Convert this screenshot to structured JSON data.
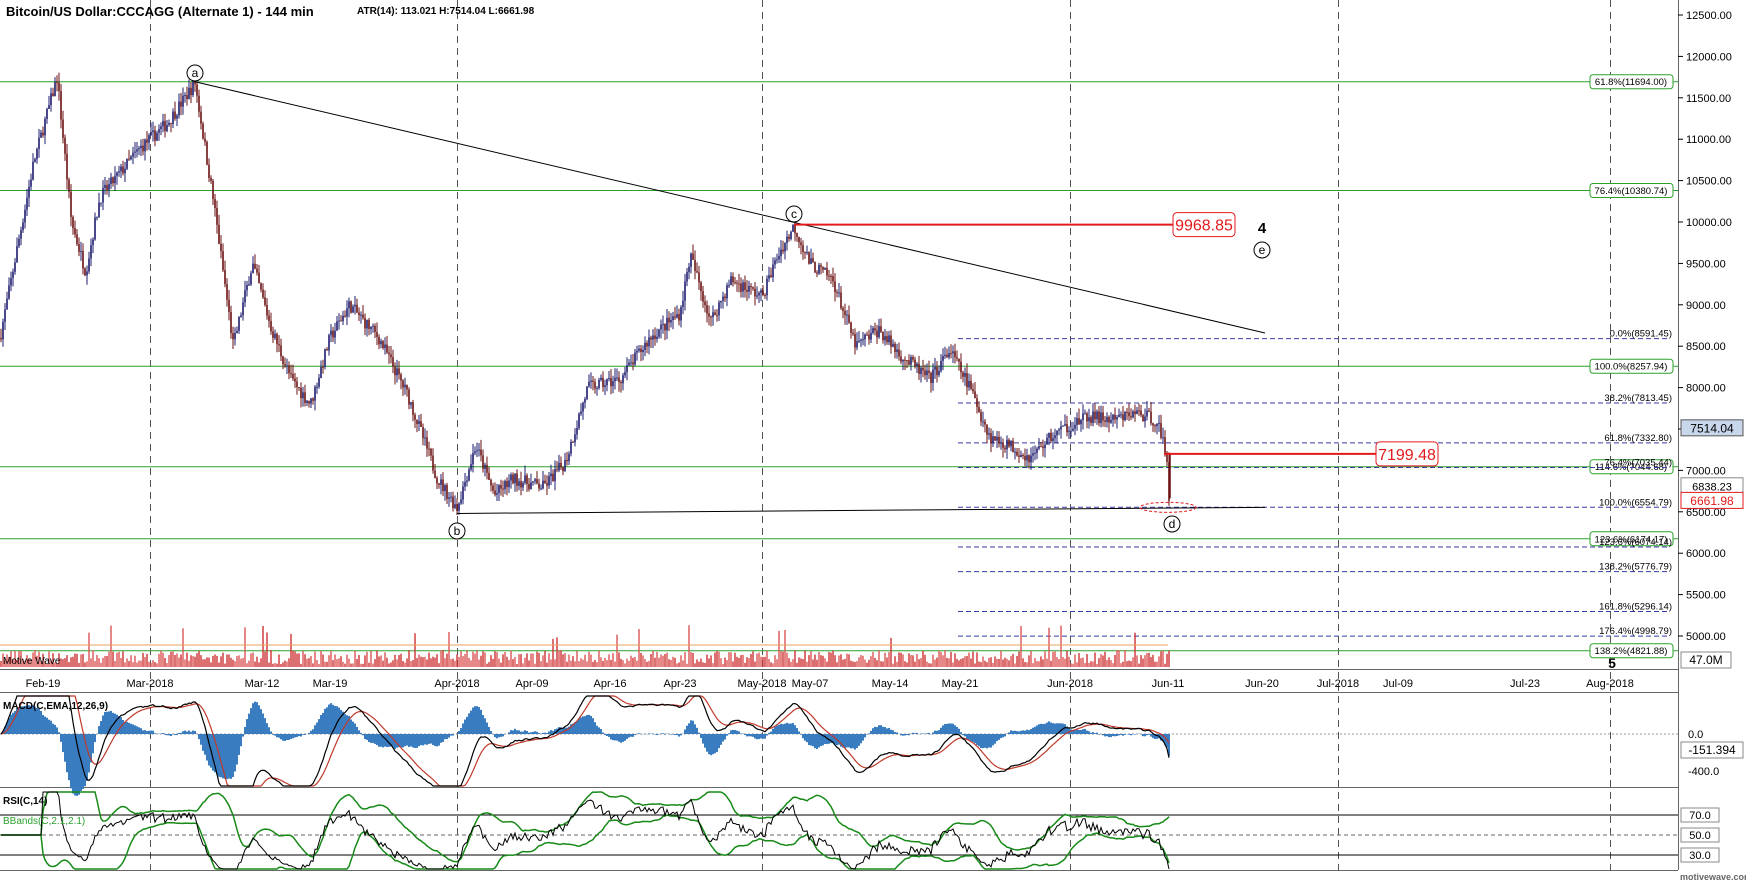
{
  "header": {
    "title": "Bitcoin/US Dollar:CCCAGG (Alternate 1) - 144 min",
    "stats": "ATR(14): 113.021  H:7514.04  L:6661.98"
  },
  "watermark": "Motive Wave",
  "credit": "motivewave.com",
  "colors": {
    "background": "#ffffff",
    "candle_up": "#1c1c6e",
    "fib_green": "#2ca02c",
    "target_red": "#e31a1c",
    "macd_hist": "#3a7cc0",
    "signal_red": "#c0392b",
    "rsi_band": "#178a17",
    "last_price_box": "#c8d7eb"
  },
  "chart_data": [
    {
      "type": "candlestick",
      "panel": "price",
      "title": "Bitcoin/US Dollar:CCCAGG (Alternate 1) - 144 min",
      "x_labels": [
        "Feb-19",
        "Mar-2018",
        "Mar-12",
        "Mar-19",
        "Apr-2018",
        "Apr-09",
        "Apr-16",
        "Apr-23",
        "May-2018",
        "May-07",
        "May-14",
        "May-21",
        "Jun-2018",
        "Jun-11",
        "Jun-20",
        "Jul-2018",
        "Jul-09",
        "Jul-23",
        "Aug-2018"
      ],
      "y_ticks": [
        5000,
        5500,
        6000,
        6500,
        7000,
        7500,
        8000,
        8500,
        9000,
        9500,
        10000,
        10500,
        11000,
        11500,
        12000,
        12500
      ],
      "ylim": [
        4700,
        12700
      ],
      "price_path": [
        {
          "date": "Feb-16",
          "price": 8600
        },
        {
          "date": "Feb-18",
          "price": 10700
        },
        {
          "date": "Feb-20",
          "price": 11750
        },
        {
          "date": "Feb-22",
          "price": 10000
        },
        {
          "date": "Feb-24",
          "price": 9400
        },
        {
          "date": "Feb-26",
          "price": 10300
        },
        {
          "date": "Mar-01",
          "price": 10900
        },
        {
          "date": "Mar-03",
          "price": 11200
        },
        {
          "date": "Mar-05",
          "price": 11680
        },
        {
          "date": "Mar-07",
          "price": 10200
        },
        {
          "date": "Mar-09",
          "price": 8500
        },
        {
          "date": "Mar-11",
          "price": 9500
        },
        {
          "date": "Mar-13",
          "price": 8700
        },
        {
          "date": "Mar-15",
          "price": 8100
        },
        {
          "date": "Mar-17",
          "price": 7800
        },
        {
          "date": "Mar-19",
          "price": 8600
        },
        {
          "date": "Mar-21",
          "price": 9000
        },
        {
          "date": "Mar-24",
          "price": 8600
        },
        {
          "date": "Mar-27",
          "price": 7900
        },
        {
          "date": "Mar-30",
          "price": 6900
        },
        {
          "date": "Apr-01",
          "price": 6550
        },
        {
          "date": "Apr-03",
          "price": 7300
        },
        {
          "date": "Apr-05",
          "price": 6700
        },
        {
          "date": "Apr-07",
          "price": 6900
        },
        {
          "date": "Apr-10",
          "price": 6800
        },
        {
          "date": "Apr-12",
          "price": 7100
        },
        {
          "date": "Apr-14",
          "price": 8000
        },
        {
          "date": "Apr-17",
          "price": 8100
        },
        {
          "date": "Apr-20",
          "price": 8600
        },
        {
          "date": "Apr-23",
          "price": 8900
        },
        {
          "date": "Apr-24",
          "price": 9600
        },
        {
          "date": "Apr-26",
          "price": 8800
        },
        {
          "date": "Apr-28",
          "price": 9300
        },
        {
          "date": "May-01",
          "price": 9100
        },
        {
          "date": "May-03",
          "price": 9600
        },
        {
          "date": "May-05",
          "price": 9950
        },
        {
          "date": "May-07",
          "price": 9500
        },
        {
          "date": "May-09",
          "price": 9300
        },
        {
          "date": "May-11",
          "price": 8500
        },
        {
          "date": "May-13",
          "price": 8700
        },
        {
          "date": "May-15",
          "price": 8400
        },
        {
          "date": "May-18",
          "price": 8100
        },
        {
          "date": "May-20",
          "price": 8450
        },
        {
          "date": "May-22",
          "price": 8000
        },
        {
          "date": "May-24",
          "price": 7400
        },
        {
          "date": "May-26",
          "price": 7300
        },
        {
          "date": "May-28",
          "price": 7150
        },
        {
          "date": "May-30",
          "price": 7400
        },
        {
          "date": "Jun-01",
          "price": 7550
        },
        {
          "date": "Jun-03",
          "price": 7650
        },
        {
          "date": "Jun-05",
          "price": 7600
        },
        {
          "date": "Jun-07",
          "price": 7700
        },
        {
          "date": "Jun-09",
          "price": 7600
        },
        {
          "date": "Jun-10",
          "price": 7100
        },
        {
          "date": "Jun-10b",
          "price": 6662
        }
      ],
      "fib_levels_green": [
        {
          "label": "61.8%(11694.00)",
          "value": 11694.0
        },
        {
          "label": "76.4%(10380.74)",
          "value": 10380.74
        },
        {
          "label": "100.0%(8257.94)",
          "value": 8257.94
        },
        {
          "label": "114.6%(7044.68)",
          "value": 7044.68
        },
        {
          "label": "123.6%(6174.17)",
          "value": 6174.17
        },
        {
          "label": "138.2%(4821.88)",
          "value": 4821.88
        }
      ],
      "fib_levels_dashed": [
        {
          "label": "0.0%(8591.45)",
          "value": 8591.45
        },
        {
          "label": "38.2%(7813.45)",
          "value": 7813.45
        },
        {
          "label": "61.8%(7332.80)",
          "value": 7332.8
        },
        {
          "label": "76.4%(7035.44)",
          "value": 7035.44
        },
        {
          "label": "100.0%(6554.79)",
          "value": 6554.79
        },
        {
          "label": "123.6%(6074.14)",
          "value": 6074.14
        },
        {
          "label": "138.2%(5776.79)",
          "value": 5776.79
        },
        {
          "label": "161.8%(5296.14)",
          "value": 5296.14
        },
        {
          "label": "176.4%(4998.79)",
          "value": 4998.79
        }
      ],
      "targets": [
        {
          "label": "9968.85",
          "value": 9968.85
        },
        {
          "label": "7199.48",
          "value": 7199.48
        }
      ],
      "wave_labels": [
        {
          "text": "a",
          "date": "Mar-05",
          "price": 11694
        },
        {
          "text": "b",
          "date": "Apr-01",
          "price": 6425
        },
        {
          "text": "c",
          "date": "May-05",
          "price": 9968
        },
        {
          "text": "d",
          "date": "Jun-10",
          "price": 6554
        },
        {
          "text": "e",
          "date": "Jun-20",
          "price": 9968
        }
      ],
      "wave_degree": "4",
      "bottom_marker": "5",
      "price_tags": [
        "7514.04",
        "6838.23",
        "6661.98"
      ],
      "volume_tag": "47.0M"
    },
    {
      "type": "line",
      "panel": "macd",
      "title": "MACD(C,EMA,12,26,9)",
      "y_ticks": [
        "0.0",
        "-400.0"
      ],
      "last_value": "-151.394"
    },
    {
      "type": "line",
      "panel": "rsi",
      "title": "RSI(C,14)",
      "legend": "BBands(C,2.1,2.1)",
      "y_ticks": [
        "70.0",
        "50.0",
        "30.0"
      ]
    }
  ]
}
